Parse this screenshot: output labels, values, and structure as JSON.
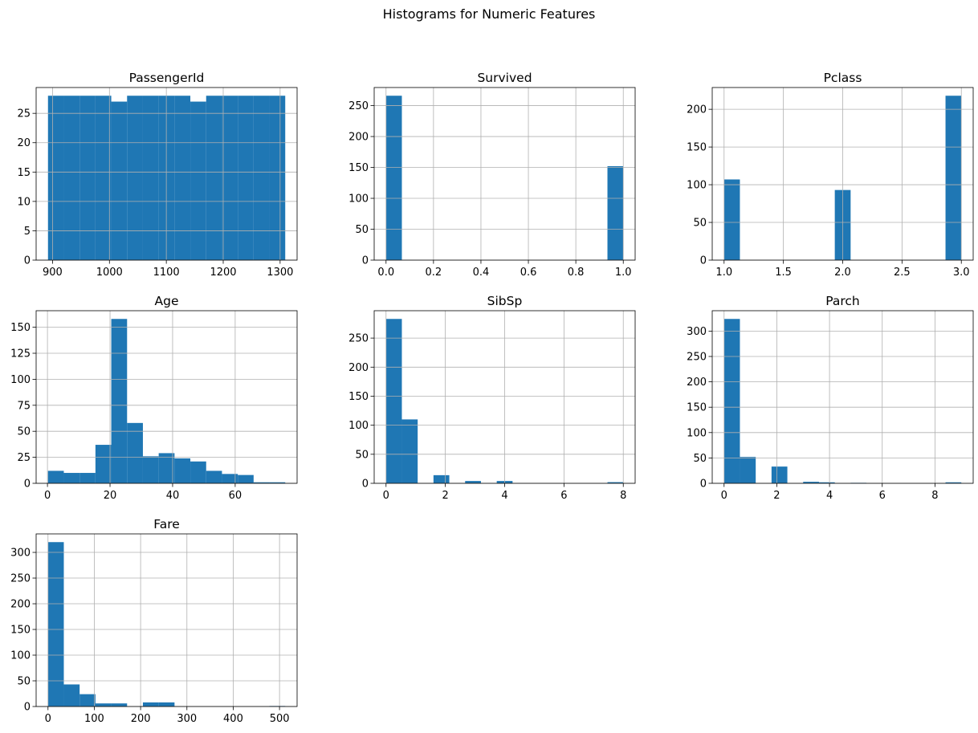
{
  "figure": {
    "suptitle": "Histograms for Numeric Features",
    "bar_color": "#1f77b4",
    "grid_color": "#b0b0b0"
  },
  "chart_data": [
    {
      "type": "bar",
      "title": "PassengerId",
      "bin_edges": [
        892,
        919.8,
        947.6,
        975.4,
        1003.2,
        1031,
        1058.8,
        1086.6,
        1114.4,
        1142.2,
        1170,
        1197.8,
        1225.6,
        1253.4,
        1281.2,
        1309
      ],
      "values": [
        28,
        28,
        28,
        28,
        27,
        28,
        28,
        28,
        28,
        27,
        28,
        28,
        28,
        28,
        28
      ],
      "xlim": [
        871.15,
        1329.85
      ],
      "ylim": [
        0,
        29.4
      ],
      "xticks": [
        900,
        1000,
        1100,
        1200,
        1300
      ],
      "yticks": [
        0,
        5,
        10,
        15,
        20,
        25
      ],
      "grid": true
    },
    {
      "type": "bar",
      "title": "Survived",
      "bin_edges": [
        0,
        0.0667,
        0.1333,
        0.2,
        0.2667,
        0.3333,
        0.4,
        0.4667,
        0.5333,
        0.6,
        0.6667,
        0.7333,
        0.8,
        0.8667,
        0.9333,
        1
      ],
      "values": [
        266,
        0,
        0,
        0,
        0,
        0,
        0,
        0,
        0,
        0,
        0,
        0,
        0,
        0,
        152
      ],
      "xlim": [
        -0.05,
        1.05
      ],
      "ylim": [
        0,
        279.3
      ],
      "xticks": [
        0.0,
        0.2,
        0.4,
        0.6,
        0.8,
        1.0
      ],
      "yticks": [
        0,
        50,
        100,
        150,
        200,
        250
      ],
      "grid": true
    },
    {
      "type": "bar",
      "title": "Pclass",
      "bin_edges": [
        1,
        1.1333,
        1.2667,
        1.4,
        1.5333,
        1.6667,
        1.8,
        1.9333,
        2.0667,
        2.2,
        2.3333,
        2.4667,
        2.6,
        2.7333,
        2.8667,
        3
      ],
      "values": [
        107,
        0,
        0,
        0,
        0,
        0,
        0,
        93,
        0,
        0,
        0,
        0,
        0,
        0,
        218
      ],
      "xlim": [
        0.9,
        3.1
      ],
      "ylim": [
        0,
        228.9
      ],
      "xticks": [
        1.0,
        1.5,
        2.0,
        2.5,
        3.0
      ],
      "yticks": [
        0,
        50,
        100,
        150,
        200
      ],
      "grid": true
    },
    {
      "type": "bar",
      "title": "Age",
      "bin_edges": [
        0.17,
        5.2253,
        10.2807,
        15.336,
        20.3913,
        25.4467,
        30.502,
        35.5573,
        40.6127,
        45.668,
        50.7233,
        55.7787,
        60.834,
        65.8893,
        70.9447,
        76
      ],
      "values": [
        12,
        10,
        10,
        37,
        158,
        58,
        26,
        29,
        24,
        21,
        12,
        9,
        8,
        1,
        1
      ],
      "xlim": [
        -3.62,
        79.79
      ],
      "ylim": [
        0,
        165.9
      ],
      "xticks": [
        0,
        20,
        40,
        60
      ],
      "yticks": [
        0,
        25,
        50,
        75,
        100,
        125,
        150
      ],
      "grid": true
    },
    {
      "type": "bar",
      "title": "SibSp",
      "bin_edges": [
        0,
        0.5333,
        1.0667,
        1.6,
        2.1333,
        2.6667,
        3.2,
        3.7333,
        4.2667,
        4.8,
        5.3333,
        5.8667,
        6.4,
        6.9333,
        7.4667,
        8
      ],
      "values": [
        283,
        110,
        0,
        14,
        0,
        4,
        0,
        4,
        0,
        0,
        0,
        0,
        0,
        0,
        2
      ],
      "xlim": [
        -0.4,
        8.4
      ],
      "ylim": [
        0,
        297.15
      ],
      "xticks": [
        0,
        2,
        4,
        6,
        8
      ],
      "yticks": [
        0,
        50,
        100,
        150,
        200,
        250
      ],
      "grid": true
    },
    {
      "type": "bar",
      "title": "Parch",
      "bin_edges": [
        0,
        0.6,
        1.2,
        1.8,
        2.4,
        3,
        3.6,
        4.2,
        4.8,
        5.4,
        6,
        6.6,
        7.2,
        7.8,
        8.4,
        9
      ],
      "values": [
        324,
        52,
        0,
        33,
        0,
        3,
        2,
        0,
        1,
        0,
        0,
        0,
        0,
        0,
        2
      ],
      "xlim": [
        -0.45,
        9.45
      ],
      "ylim": [
        0,
        340.2
      ],
      "xticks": [
        0,
        2,
        4,
        6,
        8
      ],
      "yticks": [
        0,
        50,
        100,
        150,
        200,
        250,
        300
      ],
      "grid": true
    },
    {
      "type": "bar",
      "title": "Fare",
      "bin_edges": [
        0,
        34.1555,
        68.311,
        102.4665,
        136.622,
        170.7775,
        204.933,
        239.0885,
        273.244,
        307.3995,
        341.555,
        375.7105,
        409.866,
        444.0215,
        478.177,
        512.3292
      ],
      "values": [
        320,
        43,
        24,
        6,
        6,
        0,
        8,
        8,
        0,
        0,
        0,
        0,
        0,
        0,
        1
      ],
      "xlim": [
        -25.62,
        537.95
      ],
      "ylim": [
        0,
        336
      ],
      "xticks": [
        0,
        100,
        200,
        300,
        400,
        500
      ],
      "yticks": [
        0,
        50,
        100,
        150,
        200,
        250,
        300
      ],
      "grid": true
    }
  ]
}
